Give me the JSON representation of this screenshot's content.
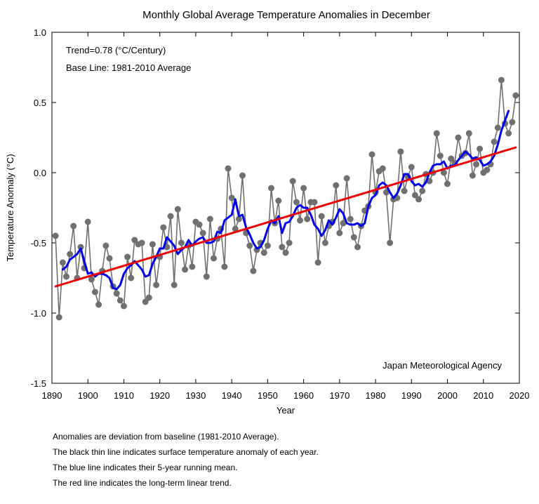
{
  "chart_data": {
    "type": "line",
    "title": "Monthly Global Average Temperature Anomalies in December",
    "xlabel": "Year",
    "ylabel": "Temperature Anomaly (°C)",
    "xlim": [
      1890,
      2020
    ],
    "ylim": [
      -1.5,
      1.0
    ],
    "x_ticks": [
      "1890",
      "1900",
      "1910",
      "1920",
      "1930",
      "1940",
      "1950",
      "1960",
      "1970",
      "1980",
      "1990",
      "2000",
      "2010",
      "2020"
    ],
    "y_ticks": [
      "1.0",
      "0.5",
      "0.0",
      "-0.5",
      "-1.0",
      "-1.5"
    ],
    "grid": false,
    "legend": "none",
    "annotations": [
      "Trend=0.78 (°C/Century)",
      "Base Line: 1981-2010 Average",
      "Japan Meteorological Agency"
    ],
    "series": [
      {
        "color": "#707070",
        "style": "line-with-markers",
        "x": [
          1891,
          1892,
          1893,
          1894,
          1895,
          1896,
          1897,
          1898,
          1899,
          1900,
          1901,
          1902,
          1903,
          1904,
          1905,
          1906,
          1907,
          1908,
          1909,
          1910,
          1911,
          1912,
          1913,
          1914,
          1915,
          1916,
          1917,
          1918,
          1919,
          1920,
          1921,
          1922,
          1923,
          1924,
          1925,
          1926,
          1927,
          1928,
          1929,
          1930,
          1931,
          1932,
          1933,
          1934,
          1935,
          1936,
          1937,
          1938,
          1939,
          1940,
          1941,
          1942,
          1943,
          1944,
          1945,
          1946,
          1947,
          1948,
          1949,
          1950,
          1951,
          1952,
          1953,
          1954,
          1955,
          1956,
          1957,
          1958,
          1959,
          1960,
          1961,
          1962,
          1963,
          1964,
          1965,
          1966,
          1967,
          1968,
          1969,
          1970,
          1971,
          1972,
          1973,
          1974,
          1975,
          1976,
          1977,
          1978,
          1979,
          1980,
          1981,
          1982,
          1983,
          1984,
          1985,
          1986,
          1987,
          1988,
          1989,
          1990,
          1991,
          1992,
          1993,
          1994,
          1995,
          1996,
          1997,
          1998,
          1999,
          2000,
          2001,
          2002,
          2003,
          2004,
          2005,
          2006,
          2007,
          2008,
          2009,
          2010,
          2011,
          2012,
          2013,
          2014,
          2015,
          2016,
          2017,
          2018,
          2019
        ],
        "y": [
          -0.45,
          -1.03,
          -0.64,
          -0.74,
          -0.58,
          -0.38,
          -0.75,
          -0.53,
          -0.68,
          -0.35,
          -0.76,
          -0.85,
          -0.94,
          -0.7,
          -0.52,
          -0.61,
          -0.81,
          -0.86,
          -0.91,
          -0.95,
          -0.6,
          -0.75,
          -0.48,
          -0.51,
          -0.5,
          -0.92,
          -0.89,
          -0.51,
          -0.8,
          -0.6,
          -0.39,
          -0.53,
          -0.31,
          -0.8,
          -0.26,
          -0.5,
          -0.69,
          -0.52,
          -0.67,
          -0.35,
          -0.37,
          -0.43,
          -0.74,
          -0.33,
          -0.61,
          -0.47,
          -0.4,
          -0.67,
          0.03,
          -0.18,
          -0.4,
          -0.33,
          -0.02,
          -0.43,
          -0.52,
          -0.7,
          -0.55,
          -0.5,
          -0.57,
          -0.52,
          -0.11,
          -0.36,
          -0.2,
          -0.53,
          -0.57,
          -0.5,
          -0.06,
          -0.21,
          -0.34,
          -0.11,
          -0.33,
          -0.21,
          -0.21,
          -0.64,
          -0.31,
          -0.5,
          -0.38,
          -0.35,
          -0.09,
          -0.43,
          -0.36,
          -0.04,
          -0.33,
          -0.46,
          -0.53,
          -0.38,
          -0.27,
          -0.24,
          0.13,
          -0.14,
          0.01,
          0.03,
          -0.14,
          -0.5,
          -0.19,
          -0.18,
          0.15,
          -0.13,
          -0.03,
          0.04,
          -0.16,
          -0.19,
          -0.13,
          -0.01,
          -0.06,
          0.0,
          0.28,
          0.12,
          0.0,
          -0.08,
          0.1,
          0.07,
          0.25,
          0.12,
          0.14,
          0.28,
          -0.02,
          0.06,
          0.17,
          0.0,
          0.02,
          0.06,
          0.22,
          0.32,
          0.66,
          0.35,
          0.28,
          0.36,
          0.55
        ]
      },
      {
        "color": "#0000ee",
        "style": "line",
        "x": [
          1893,
          1894,
          1895,
          1896,
          1897,
          1898,
          1899,
          1900,
          1901,
          1902,
          1903,
          1904,
          1905,
          1906,
          1907,
          1908,
          1909,
          1910,
          1911,
          1912,
          1913,
          1914,
          1915,
          1916,
          1917,
          1918,
          1919,
          1920,
          1921,
          1922,
          1923,
          1924,
          1925,
          1926,
          1927,
          1928,
          1929,
          1930,
          1931,
          1932,
          1933,
          1934,
          1935,
          1936,
          1937,
          1938,
          1939,
          1940,
          1941,
          1942,
          1943,
          1944,
          1945,
          1946,
          1947,
          1948,
          1949,
          1950,
          1951,
          1952,
          1953,
          1954,
          1955,
          1956,
          1957,
          1958,
          1959,
          1960,
          1961,
          1962,
          1963,
          1964,
          1965,
          1966,
          1967,
          1968,
          1969,
          1970,
          1971,
          1972,
          1973,
          1974,
          1975,
          1976,
          1977,
          1978,
          1979,
          1980,
          1981,
          1982,
          1983,
          1984,
          1985,
          1986,
          1987,
          1988,
          1989,
          1990,
          1991,
          1992,
          1993,
          1994,
          1995,
          1996,
          1997,
          1998,
          1999,
          2000,
          2001,
          2002,
          2003,
          2004,
          2005,
          2006,
          2007,
          2008,
          2009,
          2010,
          2011,
          2012,
          2013,
          2014,
          2015,
          2016,
          2017
        ],
        "y": [
          -0.69,
          -0.67,
          -0.62,
          -0.6,
          -0.58,
          -0.54,
          -0.63,
          -0.72,
          -0.71,
          -0.74,
          -0.72,
          -0.72,
          -0.73,
          -0.75,
          -0.82,
          -0.83,
          -0.8,
          -0.72,
          -0.68,
          -0.66,
          -0.63,
          -0.66,
          -0.69,
          -0.74,
          -0.73,
          -0.65,
          -0.6,
          -0.54,
          -0.54,
          -0.46,
          -0.49,
          -0.52,
          -0.58,
          -0.55,
          -0.53,
          -0.48,
          -0.52,
          -0.49,
          -0.47,
          -0.46,
          -0.5,
          -0.5,
          -0.49,
          -0.42,
          -0.43,
          -0.34,
          -0.32,
          -0.3,
          -0.19,
          -0.31,
          -0.3,
          -0.39,
          -0.44,
          -0.5,
          -0.54,
          -0.53,
          -0.48,
          -0.4,
          -0.34,
          -0.36,
          -0.31,
          -0.43,
          -0.36,
          -0.35,
          -0.31,
          -0.25,
          -0.23,
          -0.25,
          -0.25,
          -0.3,
          -0.37,
          -0.4,
          -0.45,
          -0.41,
          -0.34,
          -0.37,
          -0.32,
          -0.26,
          -0.29,
          -0.36,
          -0.37,
          -0.37,
          -0.36,
          -0.38,
          -0.36,
          -0.24,
          -0.18,
          -0.16,
          -0.09,
          -0.07,
          -0.09,
          -0.14,
          -0.18,
          -0.15,
          -0.09,
          -0.01,
          -0.01,
          -0.06,
          -0.09,
          -0.08,
          -0.1,
          -0.07,
          0.0,
          0.05,
          0.06,
          0.06,
          0.08,
          0.03,
          0.05,
          0.05,
          0.09,
          0.12,
          0.15,
          0.13,
          0.1,
          0.11,
          0.09,
          0.05,
          0.06,
          0.08,
          0.12,
          0.2,
          0.3,
          0.37,
          0.44
        ]
      },
      {
        "color": "#ee0000",
        "style": "line",
        "x": [
          1891,
          2019
        ],
        "y": [
          -0.81,
          0.18
        ]
      }
    ]
  },
  "notes": [
    "Anomalies are deviation from baseline (1981-2010 Average).",
    "The black thin line indicates surface temperature anomaly of each year.",
    "The blue line indicates their 5-year running mean.",
    "The red line indicates the long-term linear trend."
  ]
}
